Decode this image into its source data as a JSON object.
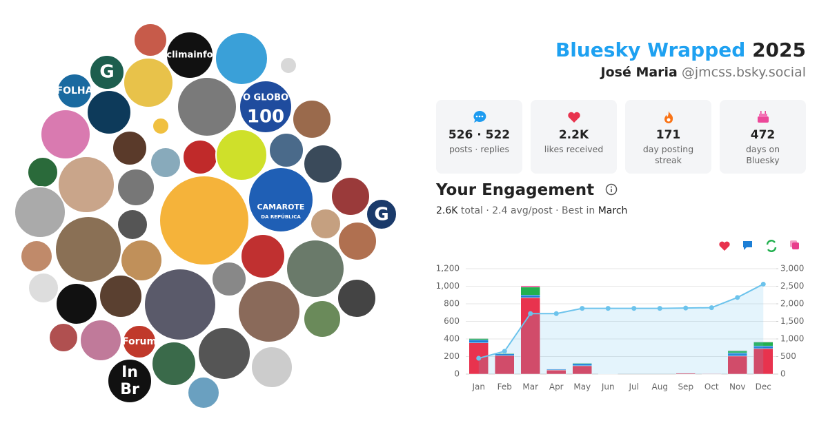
{
  "avatar_labels": [
    "climainfo",
    "G",
    "FOLHA",
    "O GLOBO",
    "100",
    "CAMAROTE",
    "DA REPÚBLICA",
    "G",
    "Forum",
    "In",
    "Br"
  ],
  "header": {
    "title_brand": "Bluesky Wrapped",
    "title_year": "2025",
    "name": "José Maria",
    "handle": "@jmcss.bsky.social"
  },
  "stats": [
    {
      "value": "526 · 522",
      "label": "posts · replies"
    },
    {
      "value": "2.2K",
      "label": "likes received"
    },
    {
      "value": "171",
      "label": "day posting streak"
    },
    {
      "value": "472",
      "label": "days on Bluesky"
    }
  ],
  "engagement": {
    "title": "Your Engagement",
    "total": "2.6K",
    "middle": "total · 2.4 avg/post · Best in",
    "best": "March"
  },
  "chart_data": {
    "type": "bar",
    "stacked": true,
    "categories": [
      "Jan",
      "Feb",
      "Mar",
      "Apr",
      "May",
      "Jun",
      "Jul",
      "Aug",
      "Sep",
      "Oct",
      "Nov",
      "Dec"
    ],
    "series": [
      {
        "color": "#e8334e",
        "values": [
          355,
          210,
          870,
          45,
          95,
          3,
          0,
          0,
          10,
          5,
          205,
          290
        ]
      },
      {
        "color": "#1d7fd6",
        "values": [
          35,
          20,
          30,
          10,
          25,
          0,
          0,
          0,
          2,
          0,
          35,
          30
        ]
      },
      {
        "color": "#22b04f",
        "values": [
          15,
          8,
          90,
          3,
          7,
          0,
          0,
          0,
          0,
          0,
          25,
          45
        ]
      },
      {
        "color": "#e83e8c",
        "values": [
          5,
          2,
          15,
          2,
          3,
          0,
          0,
          0,
          0,
          0,
          5,
          5
        ]
      },
      {
        "type": "line",
        "axis": "y2",
        "color": "#6cc3ec",
        "values": [
          450,
          650,
          1720,
          1720,
          1870,
          1870,
          1870,
          1870,
          1880,
          1890,
          2180,
          2560
        ]
      }
    ],
    "ylim": [
      0,
      1200
    ],
    "yticks": [
      0,
      200,
      400,
      600,
      800,
      {
        "value": 1000,
        "label": "1,000"
      },
      {
        "value": 1200,
        "label": "1,200"
      }
    ],
    "y2lim": [
      0,
      3000
    ],
    "y2ticks": [
      0,
      500,
      {
        "value": 1000,
        "label": "1,000"
      },
      {
        "value": 1500,
        "label": "1,500"
      },
      {
        "value": 2000,
        "label": "2,000"
      },
      {
        "value": 2500,
        "label": "2,500"
      },
      {
        "value": 3000,
        "label": "3,000"
      }
    ],
    "grid": true
  }
}
